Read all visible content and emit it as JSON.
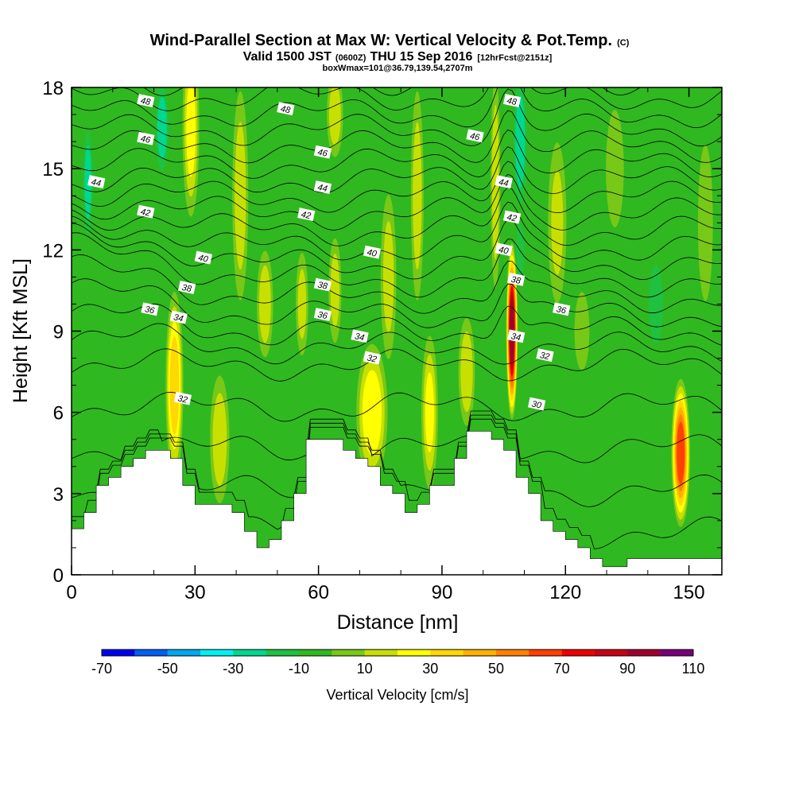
{
  "chart_data": {
    "type": "heatmap",
    "title": "Wind-Parallel Section at Max W: Vertical Velocity & Pot.Temp.",
    "title_mark": "(C)",
    "subtitle_parts": [
      "Valid 1500 JST",
      "(0600Z)",
      "THU 15 Sep 2016",
      "[12hrFcst@2151z]"
    ],
    "subtitle2": "boxWmax=101@36.79,139.54,2707m",
    "xlabel": "Distance [nm]",
    "ylabel": "Height [Kft MSL]",
    "xlim": [
      0,
      158
    ],
    "ylim": [
      0,
      18
    ],
    "x_ticks": [
      0,
      30,
      60,
      90,
      120,
      150
    ],
    "y_ticks": [
      0,
      3,
      6,
      9,
      12,
      15,
      18
    ],
    "colorbar": {
      "title": "Vertical Velocity [cm/s]",
      "levels": [
        -70,
        -60,
        -50,
        -40,
        -30,
        -20,
        -10,
        0,
        10,
        20,
        30,
        40,
        50,
        60,
        70,
        80,
        90,
        100,
        110
      ],
      "tick_labels": [
        "-70",
        "-50",
        "-30",
        "-10",
        "10",
        "30",
        "50",
        "70",
        "90",
        "110"
      ],
      "colors": [
        "#0000f0",
        "#0060f0",
        "#00a8f0",
        "#00f0f0",
        "#00d890",
        "#20c040",
        "#30b820",
        "#78c818",
        "#c8e000",
        "#ffff00",
        "#ffd800",
        "#ffb000",
        "#ff8000",
        "#ff4000",
        "#f00000",
        "#c80018",
        "#a00030",
        "#780078"
      ]
    },
    "terrain": {
      "x": [
        0,
        3,
        3,
        6,
        6,
        9,
        9,
        12,
        12,
        15,
        15,
        18,
        18,
        24,
        24,
        27,
        27,
        30,
        30,
        39,
        39,
        42,
        42,
        45,
        45,
        48,
        48,
        51,
        51,
        54,
        54,
        57,
        57,
        66,
        66,
        69,
        69,
        72,
        72,
        75,
        75,
        78,
        78,
        81,
        81,
        84,
        84,
        87,
        87,
        93,
        93,
        96,
        96,
        102,
        102,
        105,
        105,
        108,
        108,
        111,
        111,
        114,
        114,
        117,
        117,
        120,
        120,
        123,
        123,
        126,
        126,
        129,
        129,
        132,
        132,
        135,
        135,
        138,
        138,
        158
      ],
      "y": [
        1.7,
        1.7,
        2.3,
        2.3,
        3.3,
        3.3,
        3.6,
        3.6,
        4.0,
        4.0,
        4.3,
        4.3,
        4.6,
        4.6,
        4.3,
        4.3,
        3.3,
        3.3,
        2.6,
        2.6,
        2.3,
        2.3,
        1.6,
        1.6,
        1.0,
        1.0,
        1.3,
        1.3,
        2.0,
        2.0,
        3.0,
        3.0,
        5.0,
        5.0,
        4.6,
        4.6,
        4.3,
        4.3,
        4.0,
        4.0,
        3.3,
        3.3,
        3.0,
        3.0,
        2.3,
        2.3,
        2.6,
        2.6,
        3.3,
        3.3,
        4.3,
        4.3,
        5.3,
        5.3,
        5.0,
        5.0,
        4.6,
        4.6,
        3.6,
        3.6,
        3.0,
        3.0,
        2.0,
        2.0,
        1.6,
        1.6,
        1.3,
        1.3,
        1.0,
        1.0,
        0.6,
        0.6,
        0.3,
        0.3,
        0.3,
        0.3,
        0.6,
        0.6,
        0.6,
        0.6
      ]
    },
    "updrafts": [
      {
        "x": 25,
        "y": 7,
        "w": 5,
        "h": 8,
        "peak": 42
      },
      {
        "x": 29,
        "y": 16.5,
        "w": 5,
        "h": 8,
        "peak": 28
      },
      {
        "x": 36,
        "y": 5,
        "w": 6,
        "h": 6,
        "peak": 22
      },
      {
        "x": 41,
        "y": 14,
        "w": 5,
        "h": 10,
        "peak": 20
      },
      {
        "x": 47,
        "y": 10,
        "w": 5,
        "h": 5,
        "peak": 22
      },
      {
        "x": 56,
        "y": 10,
        "w": 4,
        "h": 5,
        "peak": 18
      },
      {
        "x": 64,
        "y": 10.5,
        "w": 4,
        "h": 5,
        "peak": 20
      },
      {
        "x": 64,
        "y": 17,
        "w": 5,
        "h": 4,
        "peak": 22
      },
      {
        "x": 73,
        "y": 6,
        "w": 9,
        "h": 6,
        "peak": 34
      },
      {
        "x": 77,
        "y": 11,
        "w": 5,
        "h": 8,
        "peak": 18
      },
      {
        "x": 84,
        "y": 14,
        "w": 4,
        "h": 10,
        "peak": 20
      },
      {
        "x": 87,
        "y": 6,
        "w": 5,
        "h": 7,
        "peak": 26
      },
      {
        "x": 96,
        "y": 7.5,
        "w": 5,
        "h": 5,
        "peak": 24
      },
      {
        "x": 103,
        "y": 14.5,
        "w": 3,
        "h": 10,
        "peak": 22
      },
      {
        "x": 107,
        "y": 9,
        "w": 3,
        "h": 7,
        "peak": 101
      },
      {
        "x": 118,
        "y": 13,
        "w": 6,
        "h": 8,
        "peak": 16
      },
      {
        "x": 124,
        "y": 9,
        "w": 5,
        "h": 4,
        "peak": 14
      },
      {
        "x": 132,
        "y": 15,
        "w": 6,
        "h": 6,
        "peak": 14
      },
      {
        "x": 148,
        "y": 4.5,
        "w": 5,
        "h": 6,
        "peak": 72
      },
      {
        "x": 154,
        "y": 13,
        "w": 5,
        "h": 8,
        "peak": 14
      }
    ],
    "downdrafts": [
      {
        "x": 4,
        "y": 14.5,
        "w": 3,
        "h": 5,
        "peak": -30
      },
      {
        "x": 22,
        "y": 16.5,
        "w": 4,
        "h": 4,
        "peak": -32
      },
      {
        "x": 59,
        "y": 16,
        "w": 4,
        "h": 5,
        "peak": -10
      },
      {
        "x": 109,
        "y": 16,
        "w": 4,
        "h": 6,
        "peak": -32
      },
      {
        "x": 109,
        "y": 12,
        "w": 3,
        "h": 3,
        "peak": -20
      },
      {
        "x": 142,
        "y": 10,
        "w": 6,
        "h": 5,
        "peak": -15
      },
      {
        "x": 143,
        "y": 14,
        "w": 5,
        "h": 7,
        "peak": -12
      }
    ],
    "isentropes": {
      "levels": [
        28,
        29,
        30,
        31,
        32,
        33,
        34,
        35,
        36,
        37,
        38,
        39,
        40,
        41,
        42,
        43,
        44,
        45,
        46,
        47,
        48,
        49
      ]
    },
    "contour_labels": [
      {
        "x": 18,
        "y": 17.5,
        "v": "48"
      },
      {
        "x": 52,
        "y": 17.2,
        "v": "48"
      },
      {
        "x": 107,
        "y": 17.5,
        "v": "48"
      },
      {
        "x": 18,
        "y": 16.1,
        "v": "46"
      },
      {
        "x": 61,
        "y": 15.6,
        "v": "46"
      },
      {
        "x": 98,
        "y": 16.2,
        "v": "46"
      },
      {
        "x": 6,
        "y": 14.5,
        "v": "44"
      },
      {
        "x": 61,
        "y": 14.3,
        "v": "44"
      },
      {
        "x": 105,
        "y": 14.5,
        "v": "44"
      },
      {
        "x": 18,
        "y": 13.4,
        "v": "42"
      },
      {
        "x": 57,
        "y": 13.3,
        "v": "42"
      },
      {
        "x": 107,
        "y": 13.2,
        "v": "42"
      },
      {
        "x": 32,
        "y": 11.7,
        "v": "40"
      },
      {
        "x": 73,
        "y": 11.9,
        "v": "40"
      },
      {
        "x": 105,
        "y": 12.0,
        "v": "40"
      },
      {
        "x": 28,
        "y": 10.6,
        "v": "38"
      },
      {
        "x": 61,
        "y": 10.7,
        "v": "38"
      },
      {
        "x": 108,
        "y": 10.9,
        "v": "38"
      },
      {
        "x": 19,
        "y": 9.8,
        "v": "36"
      },
      {
        "x": 61,
        "y": 9.6,
        "v": "36"
      },
      {
        "x": 119,
        "y": 9.8,
        "v": "36"
      },
      {
        "x": 26,
        "y": 9.5,
        "v": "34"
      },
      {
        "x": 70,
        "y": 8.8,
        "v": "34"
      },
      {
        "x": 108,
        "y": 8.8,
        "v": "34"
      },
      {
        "x": 73,
        "y": 8.0,
        "v": "32"
      },
      {
        "x": 115,
        "y": 8.1,
        "v": "32"
      },
      {
        "x": 27,
        "y": 6.5,
        "v": "32"
      },
      {
        "x": 113,
        "y": 6.3,
        "v": "30"
      }
    ]
  }
}
